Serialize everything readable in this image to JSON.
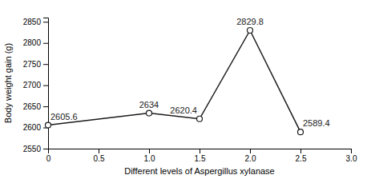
{
  "chart_data": {
    "type": "line",
    "x": [
      0,
      1.0,
      1.5,
      2.0,
      2.5
    ],
    "values": [
      2605.6,
      2634,
      2620.4,
      2829.8,
      2589.4
    ],
    "xlim": [
      0,
      3.0
    ],
    "ylim": [
      2550,
      2860
    ],
    "xticks": [
      0,
      0.5,
      {
        "value": 1.0,
        "label": "1.0"
      },
      1.5,
      {
        "value": 2.0,
        "label": "2.0"
      },
      2.5,
      {
        "value": 3.0,
        "label": "3.0"
      }
    ],
    "yticks": [
      2550,
      2600,
      2650,
      2700,
      2750,
      2800,
      2850
    ],
    "xlabel": "Different levels of Aspergillus xylanase",
    "ylabel": "Body weight gain (g)",
    "color": "#1a1a1a",
    "marker": "circle",
    "grid": false,
    "data_labels": true
  }
}
